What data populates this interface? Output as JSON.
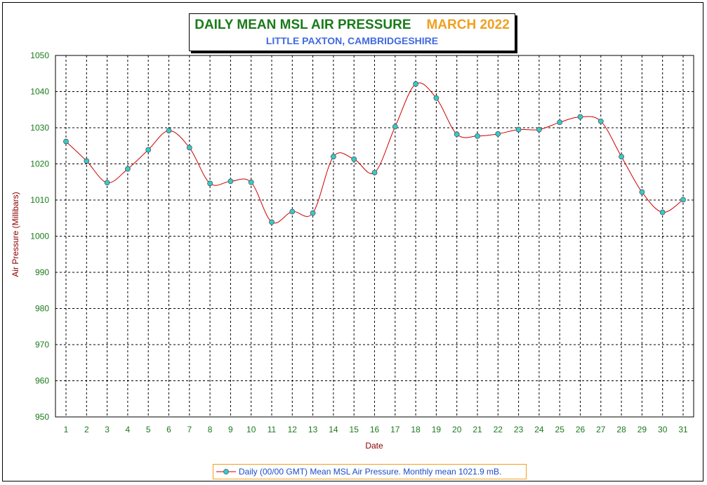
{
  "chart_data": {
    "type": "line",
    "title": "DAILY MEAN MSL AIR PRESSURE",
    "title_month": "MARCH 2022",
    "subtitle": "LITTLE PAXTON, CAMBRIDGESHIRE",
    "xlabel": "Date",
    "ylabel": "Air Pressure (Millibars)",
    "ylim": [
      950,
      1050
    ],
    "yticks": [
      950,
      960,
      970,
      980,
      990,
      1000,
      1010,
      1020,
      1030,
      1040,
      1050
    ],
    "x": [
      1,
      2,
      3,
      4,
      5,
      6,
      7,
      8,
      9,
      10,
      11,
      12,
      13,
      14,
      15,
      16,
      17,
      18,
      19,
      20,
      21,
      22,
      23,
      24,
      25,
      26,
      27,
      28,
      29,
      30,
      31
    ],
    "grid": true,
    "legend_position": "bottom",
    "series": [
      {
        "name": "Daily (00/00 GMT) Mean MSL Air Pressure. Monthly mean 1021.9 mB.",
        "values": [
          1026.2,
          1020.8,
          1014.8,
          1018.6,
          1023.9,
          1029.2,
          1024.5,
          1014.6,
          1015.2,
          1014.9,
          1003.9,
          1006.8,
          1006.4,
          1022.0,
          1021.3,
          1017.6,
          1030.3,
          1042.1,
          1038.2,
          1028.2,
          1027.7,
          1028.3,
          1029.5,
          1029.5,
          1031.5,
          1033.0,
          1031.8,
          1022.0,
          1012.2,
          1006.6,
          1010.1
        ],
        "line_color": "#cc0000",
        "marker_color": "#33cccc"
      }
    ],
    "colors": {
      "title": "#1a7a1a",
      "month": "#f0a020",
      "subtitle": "#4169e1",
      "ticks": "#1a7a1a",
      "axis_labels": "#8b0000",
      "legend_text": "#1a4dc8"
    }
  }
}
